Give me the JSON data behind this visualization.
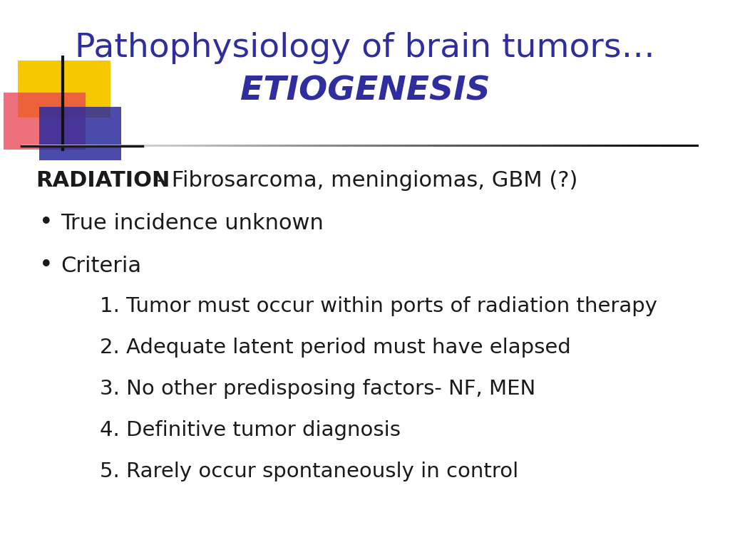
{
  "title_line1": "Pathophysiology of brain tumors…",
  "title_line2": "ETIOGENESIS",
  "title_color": "#2E2E9E",
  "bg_color": "#FFFFFF",
  "separator_color": "#1a1a1a",
  "radiation_bold": "RADIATION",
  "radiation_rest": "- Fibrosarcoma, meningiomas, GBM (?)",
  "bullet1": "True incidence unknown",
  "bullet2": "Criteria",
  "numbered": [
    "1. Tumor must occur within ports of radiation therapy",
    "2. Adequate latent period must have elapsed",
    "3. No other predisposing factors- NF, MEN",
    "4. Definitive tumor diagnosis",
    "5. Rarely occur spontaneously in control"
  ],
  "text_color": "#1a1a1a",
  "title_fontsize": 34,
  "body_fontsize": 22,
  "numbered_fontsize": 21,
  "yellow_color": "#F5C800",
  "red_color": "#E84050",
  "blue_color": "#2B2B9E"
}
